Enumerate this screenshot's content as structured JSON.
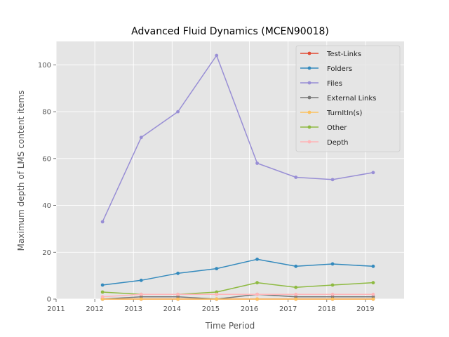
{
  "chart_data": {
    "type": "line",
    "title": "Advanced Fluid Dynamics (MCEN90018)",
    "xlabel": "Time Period",
    "ylabel": "Maximum depth of LMS content items",
    "xlim": [
      2011,
      2020
    ],
    "ylim": [
      0,
      110
    ],
    "x_ticks": [
      2011,
      2012,
      2013,
      2014,
      2015,
      2016,
      2017,
      2018,
      2019
    ],
    "y_ticks": [
      0,
      20,
      40,
      60,
      80,
      100
    ],
    "x": [
      2012.2,
      2013.2,
      2014.15,
      2015.15,
      2016.2,
      2017.2,
      2018.15,
      2019.2
    ],
    "grid": true,
    "legend_position": "top-right",
    "series": [
      {
        "name": "Test-Links",
        "color": "#e24a33",
        "values": [
          0,
          0,
          0,
          0,
          0,
          0,
          0,
          0
        ]
      },
      {
        "name": "Folders",
        "color": "#348abd",
        "values": [
          6,
          8,
          11,
          13,
          17,
          14,
          15,
          14
        ]
      },
      {
        "name": "Files",
        "color": "#988ed5",
        "values": [
          33,
          69,
          80,
          104,
          58,
          52,
          51,
          54
        ]
      },
      {
        "name": "External Links",
        "color": "#777777",
        "values": [
          0,
          1,
          1,
          0,
          2,
          1,
          1,
          1
        ]
      },
      {
        "name": "TurnItIn(s)",
        "color": "#fbc15e",
        "values": [
          0,
          0,
          0,
          0,
          0,
          0,
          0,
          0
        ]
      },
      {
        "name": "Other",
        "color": "#8eba42",
        "values": [
          3,
          2,
          2,
          3,
          7,
          5,
          6,
          7
        ]
      },
      {
        "name": "Depth",
        "color": "#ffb5b8",
        "values": [
          1,
          2,
          2,
          2,
          2,
          2,
          2,
          2
        ]
      }
    ]
  }
}
